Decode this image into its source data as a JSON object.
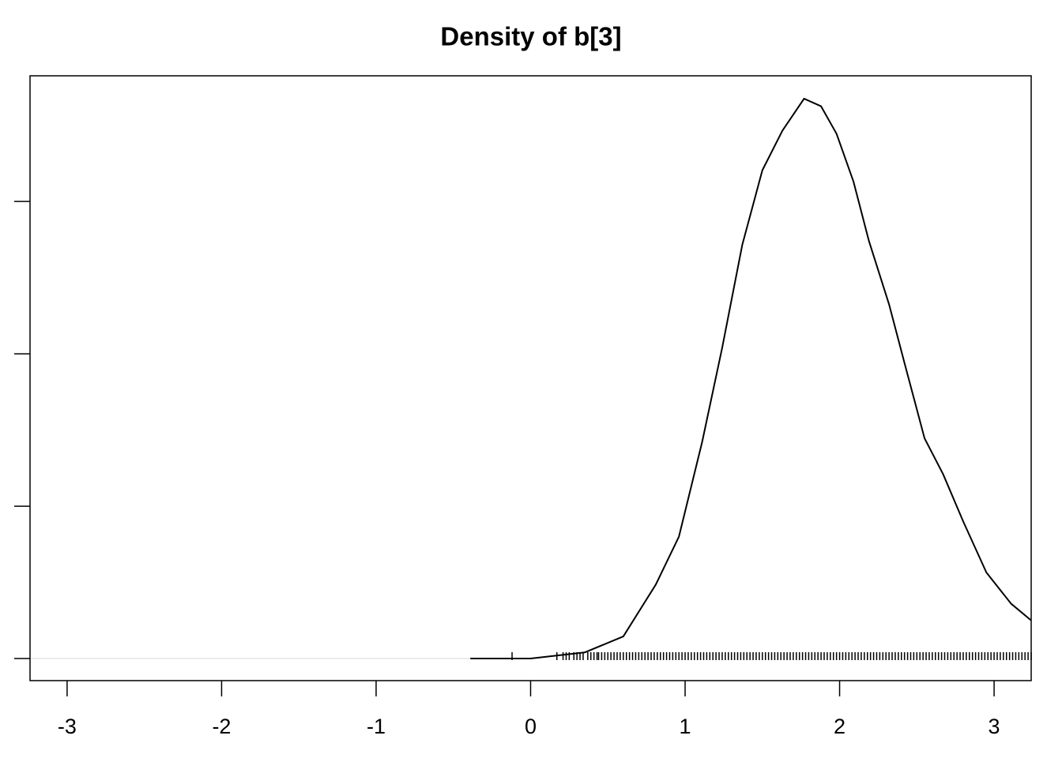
{
  "chart_data": {
    "type": "density",
    "title": "Density of b[3]",
    "x": [
      -0.39,
      0,
      0.35,
      0.6,
      0.81,
      0.96,
      1.11,
      1.24,
      1.37,
      1.5,
      1.63,
      1.77,
      1.88,
      1.98,
      2.09,
      2.19,
      2.32,
      2.42,
      2.55,
      2.67,
      2.8,
      2.95,
      3.11,
      3.24
    ],
    "values": [
      0,
      0,
      0.008,
      0.029,
      0.097,
      0.16,
      0.284,
      0.408,
      0.543,
      0.641,
      0.693,
      0.735,
      0.725,
      0.689,
      0.626,
      0.548,
      0.465,
      0.388,
      0.289,
      0.242,
      0.18,
      0.113,
      0.072,
      0.05
    ],
    "rug": [
      -0.12,
      0.17,
      0.21,
      0.23,
      0.25,
      0.28,
      0.3,
      0.32,
      0.34,
      0.37,
      0.39,
      0.41,
      0.43,
      0.44,
      0.46,
      0.48,
      0.5,
      0.52,
      0.54,
      0.56,
      0.58,
      0.6,
      0.62,
      0.64,
      0.66,
      0.68,
      0.7,
      0.72,
      0.74,
      0.76,
      0.78,
      0.8,
      0.82,
      0.84,
      0.86,
      0.88,
      0.9,
      0.92,
      0.94,
      0.96,
      0.98,
      1.0,
      1.02,
      1.04,
      1.06,
      1.08,
      1.1,
      1.12,
      1.14,
      1.16,
      1.18,
      1.2,
      1.22,
      1.24,
      1.26,
      1.28,
      1.3,
      1.32,
      1.34,
      1.36,
      1.38,
      1.4,
      1.42,
      1.44,
      1.46,
      1.48,
      1.5,
      1.52,
      1.54,
      1.56,
      1.58,
      1.6,
      1.62,
      1.64,
      1.66,
      1.68,
      1.7,
      1.72,
      1.74,
      1.76,
      1.78,
      1.8,
      1.82,
      1.84,
      1.86,
      1.88,
      1.9,
      1.92,
      1.94,
      1.96,
      1.98,
      2.0,
      2.02,
      2.04,
      2.06,
      2.08,
      2.1,
      2.12,
      2.14,
      2.16,
      2.18,
      2.2,
      2.22,
      2.24,
      2.26,
      2.28,
      2.3,
      2.32,
      2.34,
      2.36,
      2.38,
      2.4,
      2.42,
      2.44,
      2.46,
      2.48,
      2.5,
      2.52,
      2.54,
      2.56,
      2.58,
      2.6,
      2.62,
      2.64,
      2.66,
      2.68,
      2.7,
      2.72,
      2.74,
      2.76,
      2.78,
      2.8,
      2.82,
      2.84,
      2.86,
      2.88,
      2.9,
      2.92,
      2.94,
      2.96,
      2.98,
      3.0,
      3.02,
      3.04,
      3.06,
      3.08,
      3.1,
      3.12,
      3.14,
      3.16,
      3.18,
      3.2,
      3.22,
      3.24
    ],
    "color": "#000000",
    "xlim": [
      -3.24,
      3.24
    ],
    "xticks": [
      -3,
      -2,
      -1,
      0,
      1,
      2,
      3
    ],
    "ylim": [
      -0.029,
      0.765
    ],
    "yticks": [
      0,
      0.2,
      0.4,
      0.6
    ]
  }
}
